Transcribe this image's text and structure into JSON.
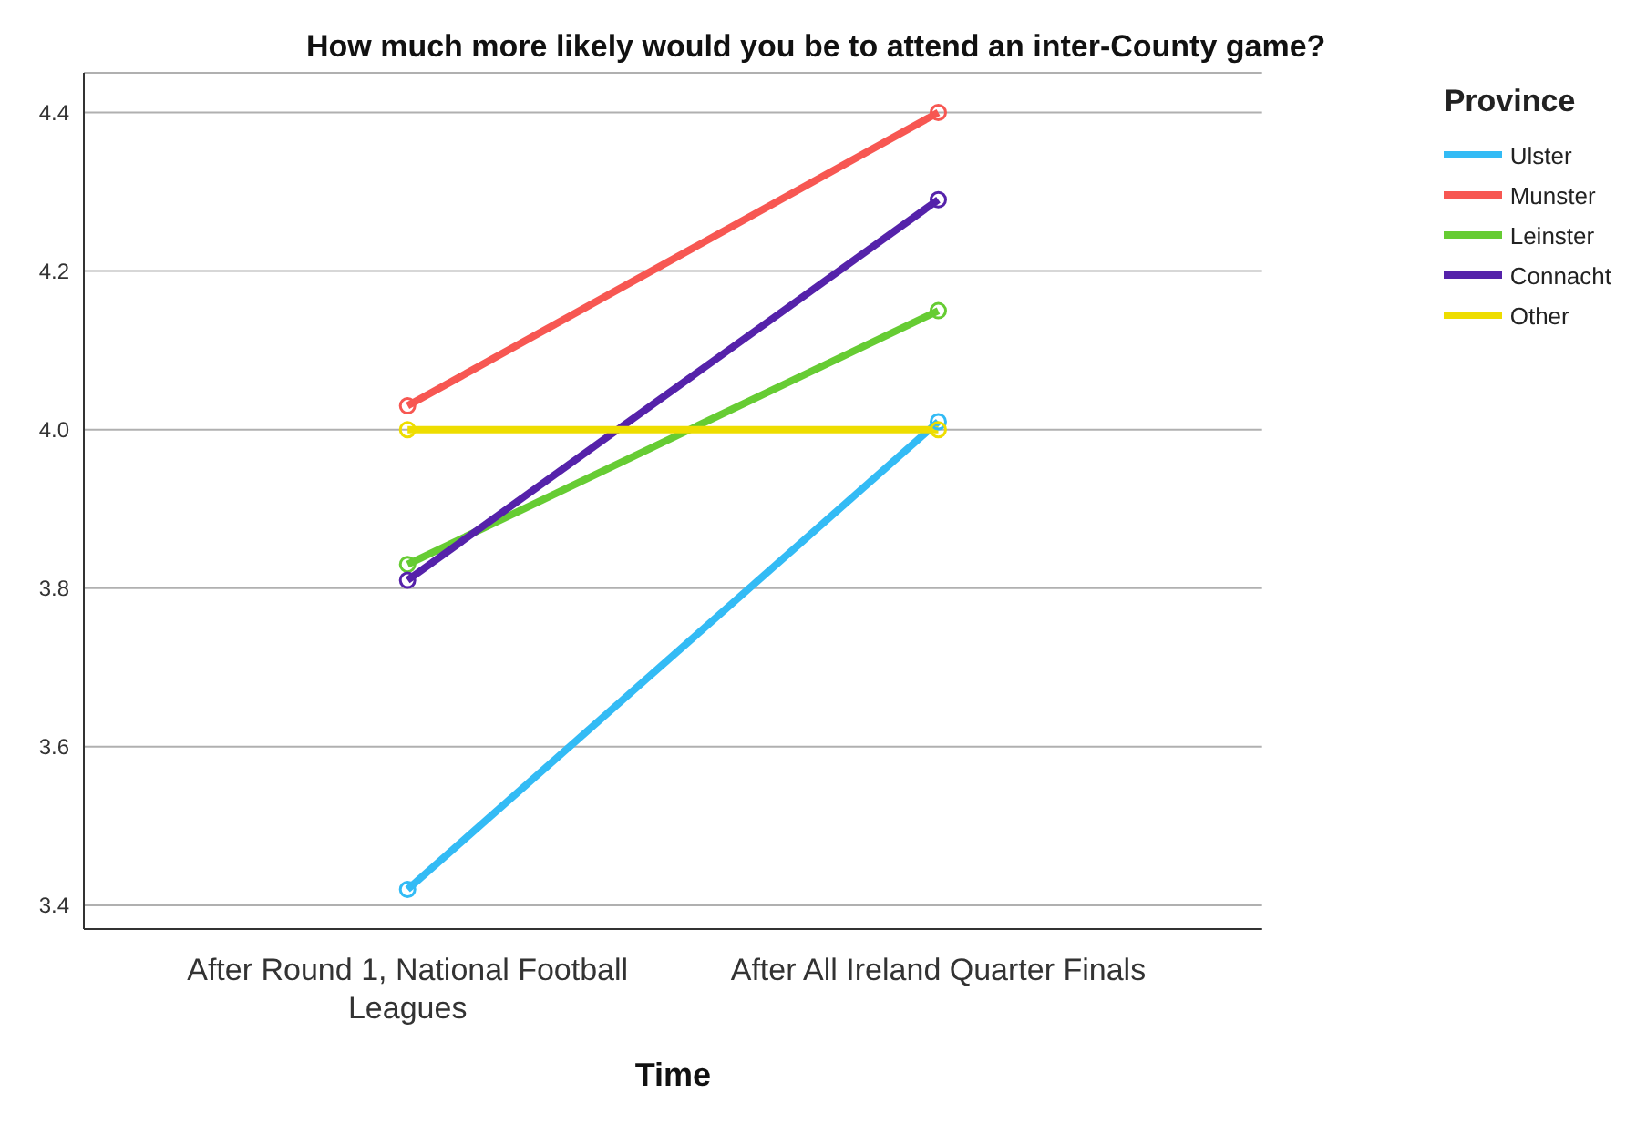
{
  "chart_data": {
    "type": "line",
    "title": "How much more likely would you be to attend an inter-County game?",
    "xlabel": "Time",
    "legend_title": "Province",
    "categories": [
      "After Round 1, National Football Leagues",
      "After All Ireland Quarter Finals"
    ],
    "series": [
      {
        "name": "Ulster",
        "color": "#33bbf5",
        "values": [
          3.42,
          4.01
        ]
      },
      {
        "name": "Munster",
        "color": "#f75752",
        "values": [
          4.03,
          4.4
        ]
      },
      {
        "name": "Leinster",
        "color": "#66cc33",
        "values": [
          3.83,
          4.15
        ]
      },
      {
        "name": "Connacht",
        "color": "#5522aa",
        "values": [
          3.81,
          4.29
        ]
      },
      {
        "name": "Other",
        "color": "#eedd00",
        "values": [
          4.0,
          4.0
        ]
      }
    ],
    "ylim": [
      3.37,
      4.45
    ],
    "yticks": [
      3.4,
      3.6,
      3.8,
      {
        "value": 4.0,
        "label": "4.0"
      },
      4.2,
      4.4
    ],
    "grid": "y",
    "legend": "top right",
    "marker": "circle",
    "line_style": "solid"
  }
}
